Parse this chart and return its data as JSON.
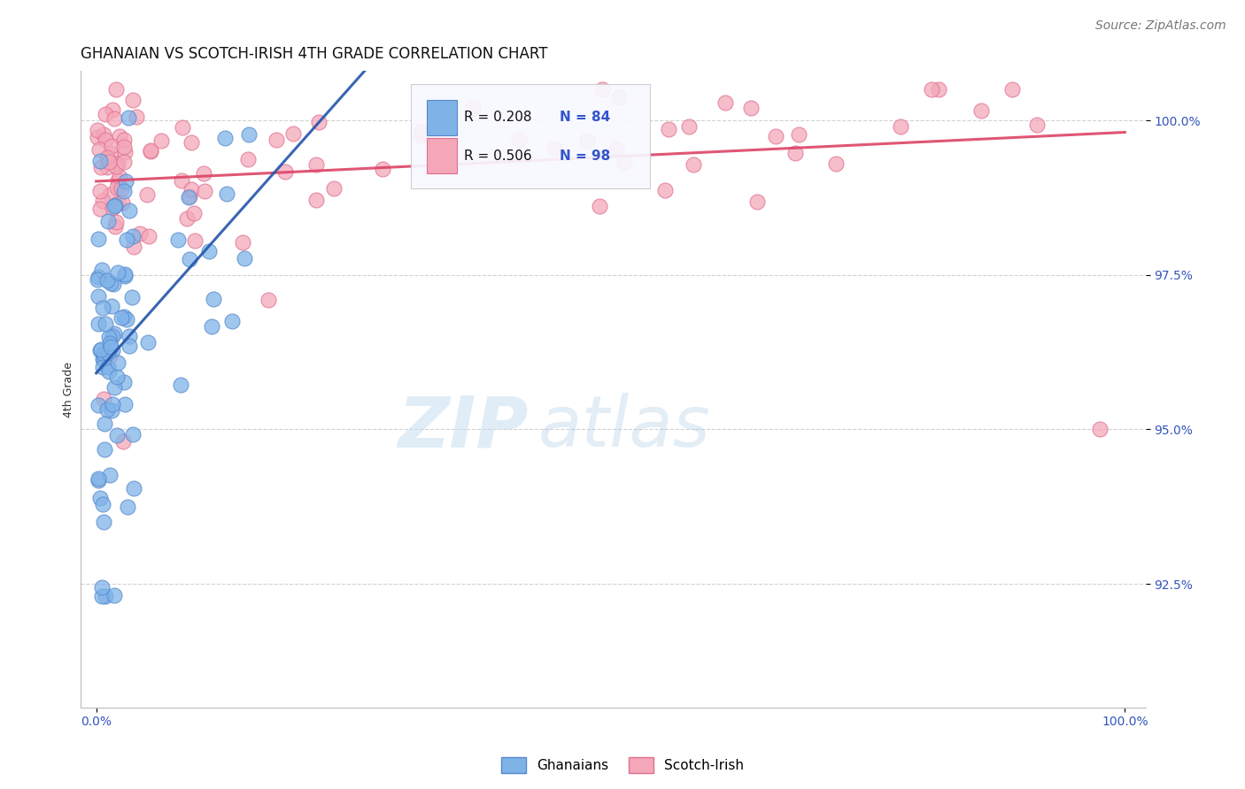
{
  "title": "GHANAIAN VS SCOTCH-IRISH 4TH GRADE CORRELATION CHART",
  "source_text": "Source: ZipAtlas.com",
  "ylabel": "4th Grade",
  "xlim": [
    -1.5,
    102.0
  ],
  "ylim": [
    90.5,
    100.8
  ],
  "yticks": [
    92.5,
    95.0,
    97.5,
    100.0
  ],
  "xticks": [
    0.0,
    100.0
  ],
  "xticklabels": [
    "0.0%",
    "100.0%"
  ],
  "yticklabels": [
    "92.5%",
    "95.0%",
    "97.5%",
    "100.0%"
  ],
  "ghanaian_color": "#7fb3e8",
  "scotch_irish_color": "#f4a7b9",
  "ghanaian_edge": "#5588cc",
  "scotch_irish_edge": "#e07090",
  "trend_blue": "#2255aa",
  "trend_pink": "#dd4466",
  "legend_R_blue": "R = 0.208",
  "legend_N_blue": "N = 84",
  "legend_R_pink": "R = 0.506",
  "legend_N_pink": "N = 98",
  "watermark_ZIP": "ZIP",
  "watermark_atlas": "atlas",
  "background_color": "#ffffff",
  "grid_color": "#cccccc",
  "title_fontsize": 12,
  "axis_label_fontsize": 9,
  "tick_fontsize": 10,
  "source_fontsize": 10
}
